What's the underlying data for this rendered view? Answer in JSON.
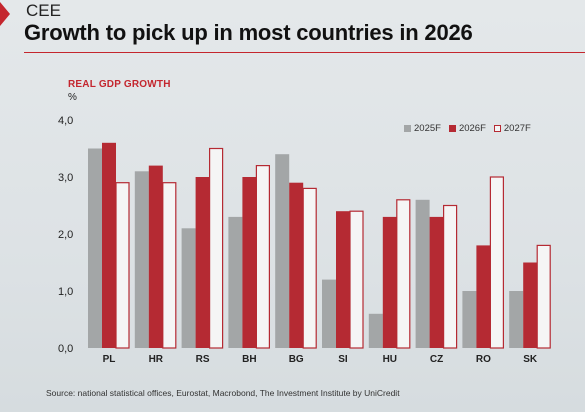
{
  "section_tag": "CEE",
  "colors": {
    "accent": "#c4262e",
    "series_2025": "#a3a6a7",
    "series_2026": "#b52a33",
    "series_2027_fill": "#f5f5f5",
    "series_2027_stroke": "#b52a33"
  },
  "chart_data": {
    "type": "bar",
    "title": "Growth to pick up in most countries in 2026",
    "metric_label": "REAL GDP GROWTH",
    "ylabel": "%",
    "xlabel": "",
    "ylim": [
      0,
      4.0
    ],
    "yticks": [
      "0,0",
      "1,0",
      "2,0",
      "3,0",
      "4,0"
    ],
    "categories": [
      "PL",
      "HR",
      "RS",
      "BH",
      "BG",
      "SI",
      "HU",
      "CZ",
      "RO",
      "SK"
    ],
    "series": [
      {
        "name": "2025F",
        "values": [
          3.5,
          3.1,
          2.1,
          2.3,
          3.4,
          1.2,
          0.6,
          2.6,
          1.0,
          1.0
        ]
      },
      {
        "name": "2026F",
        "values": [
          3.6,
          3.2,
          3.0,
          3.0,
          2.9,
          2.4,
          2.3,
          2.3,
          1.8,
          1.5
        ]
      },
      {
        "name": "2027F",
        "values": [
          2.9,
          2.9,
          3.5,
          3.2,
          2.8,
          2.4,
          2.6,
          2.5,
          3.0,
          1.8
        ]
      }
    ],
    "legend_position": "top-right",
    "grid": false
  },
  "source": "Source: national statistical offices, Eurostat, Macrobond, The Investment Institute by UniCredit"
}
